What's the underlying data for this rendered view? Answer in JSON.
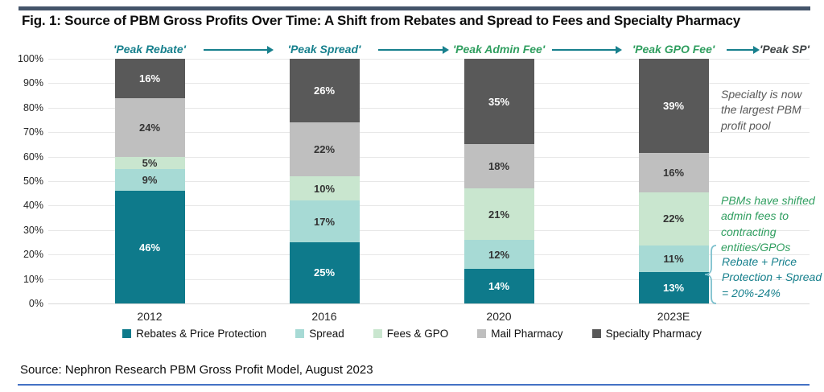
{
  "header": {
    "title": "Fig. 1:  Source of PBM Gross Profits Over Time: A Shift from Rebates and Spread to Fees and Specialty Pharmacy"
  },
  "peak_flow": {
    "labels": [
      {
        "text": "'Peak Rebate'",
        "color": "#17808D"
      },
      {
        "text": "'Peak Spread'",
        "color": "#17808D"
      },
      {
        "text": "'Peak Admin Fee'",
        "color": "#2F9E5F"
      },
      {
        "text": "'Peak GPO Fee'",
        "color": "#2F9E5F"
      },
      {
        "text": "'Peak SP'",
        "color": "#3F4446"
      }
    ],
    "arrow_color": "#17808D"
  },
  "chart_data": {
    "type": "bar",
    "stacked": true,
    "title": "Source of PBM Gross Profits Over Time",
    "categories": [
      "2012",
      "2016",
      "2020",
      "2023E"
    ],
    "series": [
      {
        "name": "Rebates & Price Protection",
        "color": "#0E7A8B",
        "label_color": "#FFFFFF",
        "values": [
          46,
          25,
          14,
          13
        ]
      },
      {
        "name": "Spread",
        "color": "#A7DAD5",
        "label_color": "#333333",
        "values": [
          9,
          17,
          12,
          11
        ]
      },
      {
        "name": "Fees & GPO",
        "color": "#C9E6CF",
        "label_color": "#333333",
        "values": [
          5,
          10,
          21,
          22
        ]
      },
      {
        "name": "Mail Pharmacy",
        "color": "#BFBFBF",
        "label_color": "#333333",
        "values": [
          24,
          22,
          18,
          16
        ]
      },
      {
        "name": "Specialty Pharmacy",
        "color": "#595959",
        "label_color": "#FFFFFF",
        "values": [
          16,
          26,
          35,
          39
        ]
      }
    ],
    "ylim": [
      0,
      100
    ],
    "ytick_step": 10,
    "ytick_suffix": "%",
    "grid": true,
    "legend_position": "bottom",
    "value_labels_suffix": "%"
  },
  "annotations": [
    {
      "text": "Specialty is now the largest PBM profit pool",
      "color": "#595959"
    },
    {
      "text": "PBMs have shifted admin fees to contracting entities/GPOs",
      "color": "#2F9E5F"
    },
    {
      "text": "Rebate + Price Protection + Spread = 20%-24%",
      "color": "#17808D"
    }
  ],
  "footer": {
    "source": "Source: Nephron Research PBM Gross Profit Model, August 2023"
  },
  "colors": {
    "top_bar": "#44546A",
    "bottom_rule": "#4472C4",
    "grid": "#E7E7E7",
    "brace": "#7CC0CD"
  }
}
